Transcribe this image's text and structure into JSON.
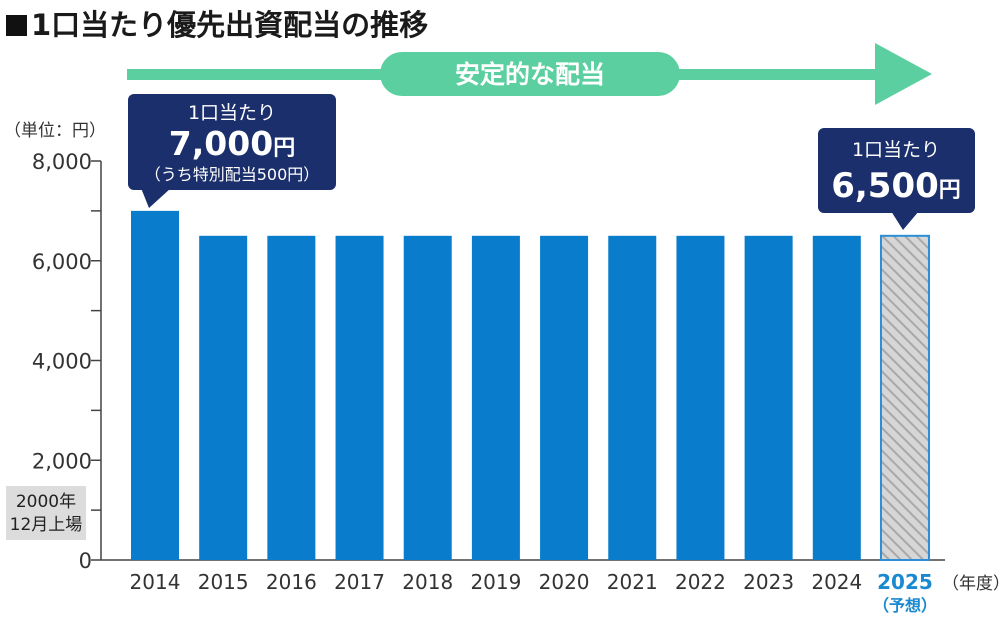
{
  "title": "1口当たり優先出資配当の推移",
  "chart_data": {
    "type": "bar",
    "categories": [
      "2014",
      "2015",
      "2016",
      "2017",
      "2018",
      "2019",
      "2020",
      "2021",
      "2022",
      "2023",
      "2024",
      "2025"
    ],
    "values": [
      7000,
      6500,
      6500,
      6500,
      6500,
      6500,
      6500,
      6500,
      6500,
      6500,
      6500,
      6500
    ],
    "forecast_index": 11,
    "forecast_label": "（予想）",
    "unit_label": "（単位：円）",
    "x_unit_label": "（年度）",
    "ylim": [
      0,
      8000
    ],
    "yticks": [
      0,
      2000,
      4000,
      6000,
      8000
    ],
    "ytick_labels": [
      "0",
      "2,000",
      "4,000",
      "6,000",
      "8,000"
    ],
    "trend_label": "安定的な配当",
    "listing_note": [
      "2000年",
      "12月上場"
    ],
    "callouts": [
      {
        "bar_index": 0,
        "line1": "1口当たり",
        "value": "7,000",
        "unit": "円",
        "line3": "（うち特別配当500円）"
      },
      {
        "bar_index": 11,
        "line1": "1口当たり",
        "value": "6,500",
        "unit": "円",
        "line3": ""
      }
    ],
    "colors": {
      "bar": "#0a7ccc",
      "forecast_stroke": "#2a8fd6",
      "forecast_hatch": "#a8a8a8",
      "forecast_fill": "#d6d6d6",
      "callout": "#1a2f6b",
      "arrow": "#5ccfa0",
      "axis": "#444444",
      "forecast_text": "#1a8ad0",
      "note_box": "#dcdcdc"
    }
  }
}
